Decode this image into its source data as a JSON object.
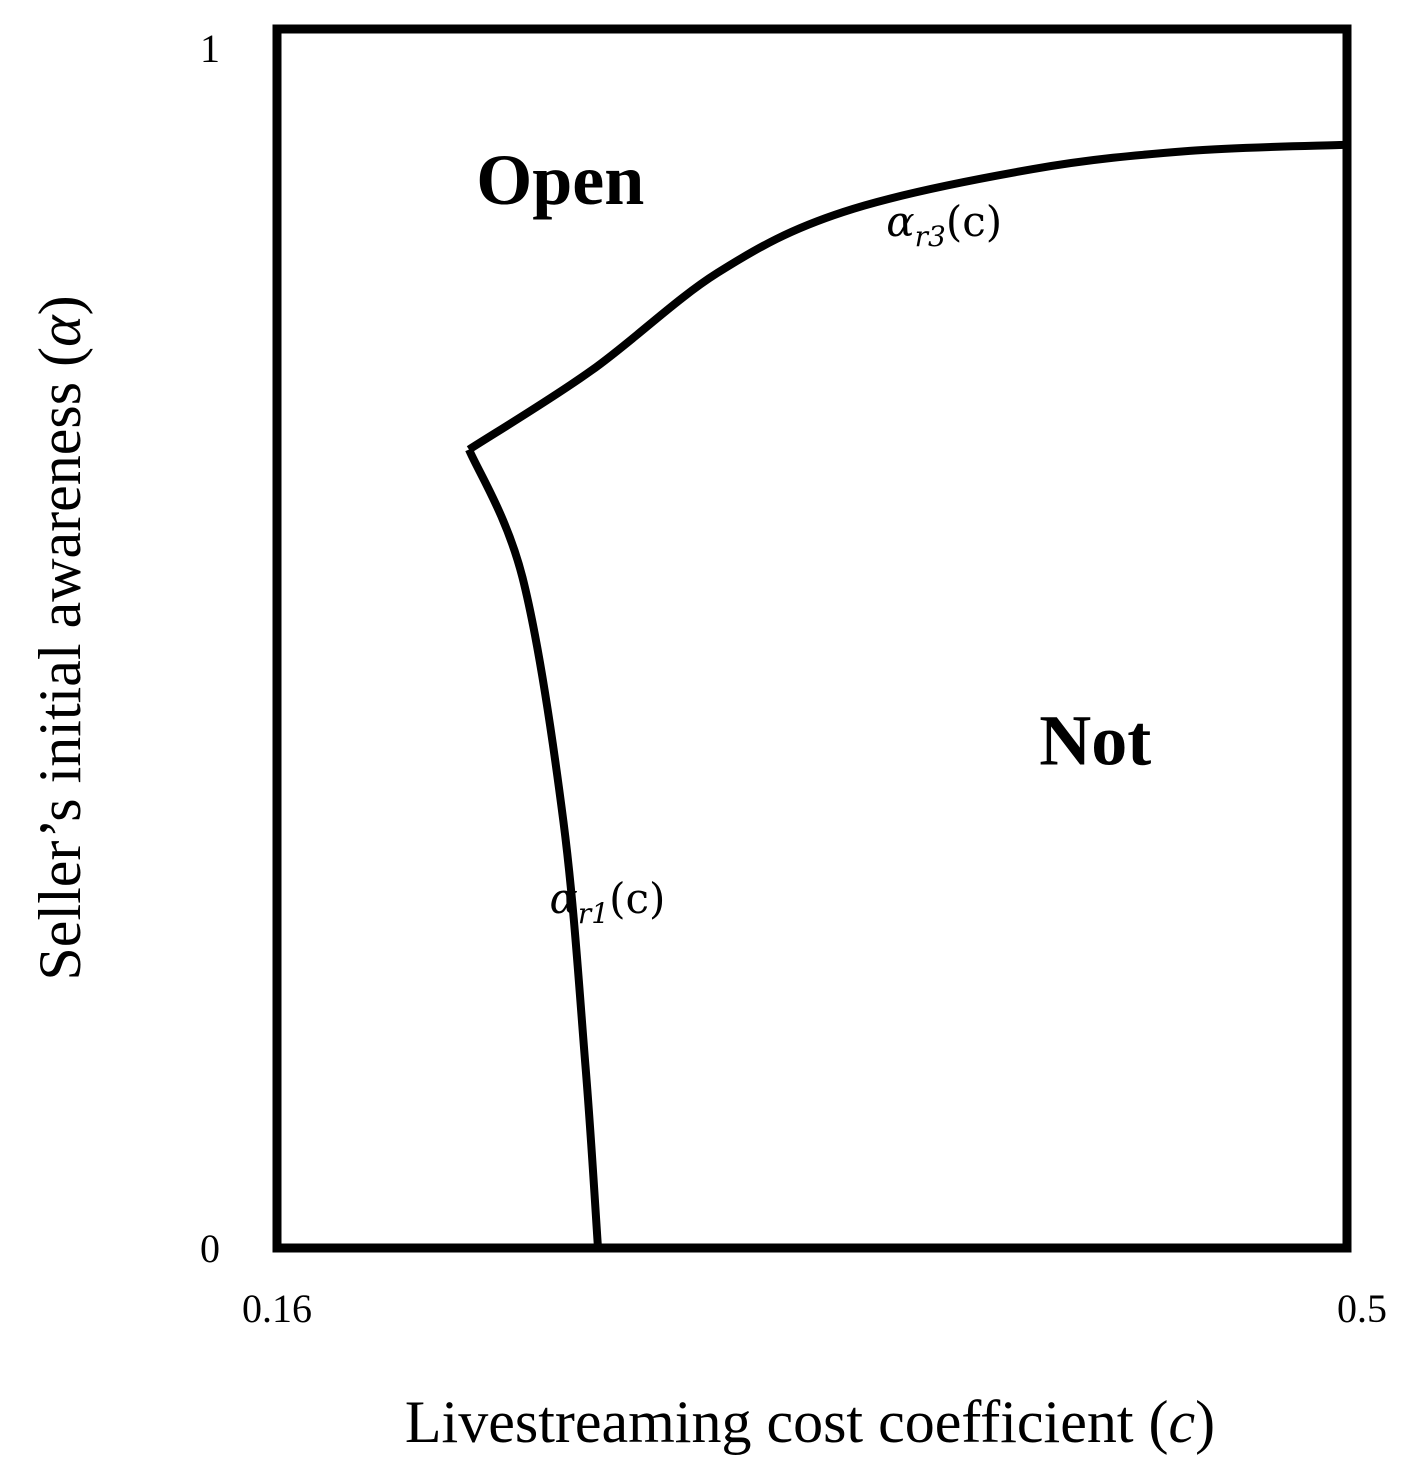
{
  "chart_data": {
    "type": "line",
    "title": "",
    "xlabel": "Livestreaming cost coefficient (",
    "xlabel_var": "c",
    "xlabel_close": ")",
    "ylabel": "Seller’s initial awareness (",
    "ylabel_var": "α",
    "ylabel_close": ")",
    "xlim": [
      0.16,
      0.5
    ],
    "ylim": [
      0,
      1
    ],
    "x_ticks": [
      "0.16",
      "0.5"
    ],
    "y_ticks": [
      "0",
      "1"
    ],
    "grid": false,
    "line_color": "#000000",
    "regions": [
      {
        "label": "Open",
        "x": 0.25,
        "y": 0.87
      },
      {
        "label": "Not",
        "x": 0.42,
        "y": 0.41
      }
    ],
    "series": [
      {
        "name": "αr1(c)",
        "label_base": "α",
        "label_sub": "r1",
        "label_arg": "(c)",
        "label_at": {
          "x": 0.265,
          "y": 0.275
        },
        "points": [
          [
            0.262,
            0.0
          ],
          [
            0.258,
            0.15
          ],
          [
            0.251,
            0.35
          ],
          [
            0.238,
            0.55
          ],
          [
            0.221,
            0.655
          ]
        ]
      },
      {
        "name": "αr3(c)",
        "label_base": "α",
        "label_sub": "r3",
        "label_arg": "(c)",
        "label_at": {
          "x": 0.372,
          "y": 0.83
        },
        "points": [
          [
            0.221,
            0.655
          ],
          [
            0.26,
            0.72
          ],
          [
            0.3,
            0.8
          ],
          [
            0.34,
            0.85
          ],
          [
            0.4,
            0.885
          ],
          [
            0.45,
            0.9
          ],
          [
            0.5,
            0.905
          ]
        ]
      }
    ]
  }
}
